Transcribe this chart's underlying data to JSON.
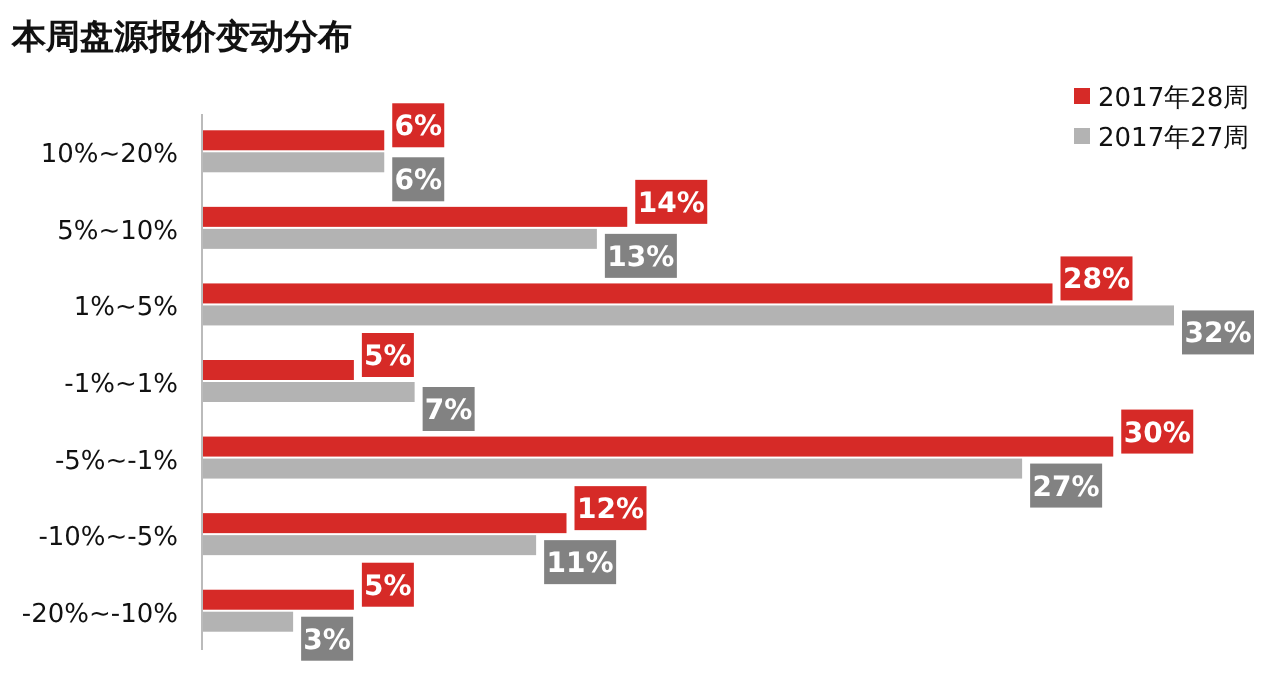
{
  "chart_data": {
    "type": "bar",
    "orientation": "horizontal",
    "title": "本周盘源报价变动分布",
    "categories": [
      "10%~20%",
      "5%~10%",
      "1%~5%",
      "-1%~1%",
      "-5%~-1%",
      "-10%~-5%",
      "-20%~-10%"
    ],
    "series": [
      {
        "name": "2017年28周",
        "color": "#d62a27",
        "values": [
          6,
          14,
          28,
          5,
          30,
          12,
          5
        ],
        "value_labels": [
          "6%",
          "14%",
          "28%",
          "5%",
          "30%",
          "12%",
          "5%"
        ]
      },
      {
        "name": "2017年27周",
        "color": "#b3b3b3",
        "values": [
          6,
          13,
          32,
          7,
          27,
          11,
          3
        ],
        "value_labels": [
          "6%",
          "13%",
          "32%",
          "7%",
          "27%",
          "11%",
          "3%"
        ]
      }
    ],
    "tick_labels": "y",
    "legend": "top right"
  }
}
